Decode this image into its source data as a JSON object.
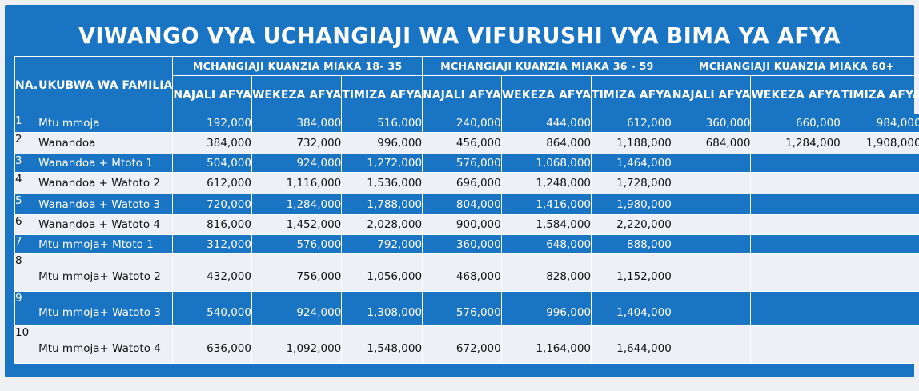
{
  "title": "VIWANGO VYA UCHANGIAJI WA VIFURUSHI VYA BIMA YA AFYA",
  "table": {
    "col_no": "NA.",
    "col_family": "UKUBWA WA FAMILIA",
    "age_groups": [
      "MCHANGIAJI KUANZIA MIAKA 18- 35",
      "MCHANGIAJI KUANZIA MIAKA 36 - 59",
      "MCHANGIAJI KUANZIA MIAKA 60+"
    ],
    "packages": [
      "NAJALI AFYA",
      "WEKEZA AFYA",
      "TIMIZA AFYA"
    ],
    "rows": [
      {
        "no": "1",
        "family": "Mtu mmoja",
        "values": [
          "192,000",
          "384,000",
          "516,000",
          "240,000",
          "444,000",
          "612,000",
          "360,000",
          "660,000",
          "984,000"
        ]
      },
      {
        "no": "2",
        "family": "Wanandoa",
        "values": [
          "384,000",
          "732,000",
          "996,000",
          "456,000",
          "864,000",
          "1,188,000",
          "684,000",
          "1,284,000",
          "1,908,000"
        ]
      },
      {
        "no": "3",
        "family": "Wanandoa + Mtoto 1",
        "values": [
          "504,000",
          "924,000",
          "1,272,000",
          "576,000",
          "1,068,000",
          "1,464,000",
          "",
          "",
          ""
        ]
      },
      {
        "no": "4",
        "family": "Wanandoa + Watoto 2",
        "values": [
          "612,000",
          "1,116,000",
          "1,536,000",
          "696,000",
          "1,248,000",
          "1,728,000",
          "",
          "",
          ""
        ]
      },
      {
        "no": "5",
        "family": "Wanandoa + Watoto 3",
        "values": [
          "720,000",
          "1,284,000",
          "1,788,000",
          "804,000",
          "1,416,000",
          "1,980,000",
          "",
          "",
          ""
        ]
      },
      {
        "no": "6",
        "family": "Wanandoa + Watoto 4",
        "values": [
          "816,000",
          "1,452,000",
          "2,028,000",
          "900,000",
          "1,584,000",
          "2,220,000",
          "",
          "",
          ""
        ]
      },
      {
        "no": "7",
        "family": "Mtu mmoja+ Mtoto 1",
        "values": [
          "312,000",
          "576,000",
          "792,000",
          "360,000",
          "648,000",
          "888,000",
          "",
          "",
          ""
        ]
      },
      {
        "no": "8",
        "family": "Mtu mmoja+ Watoto 2",
        "values": [
          "432,000",
          "756,000",
          "1,056,000",
          "468,000",
          "828,000",
          "1,152,000",
          "",
          "",
          ""
        ]
      },
      {
        "no": "9",
        "family": "Mtu mmoja+ Watoto 3",
        "values": [
          "540,000",
          "924,000",
          "1,308,000",
          "576,000",
          "996,000",
          "1,404,000",
          "",
          "",
          ""
        ]
      },
      {
        "no": "10",
        "family": "Mtu mmoja+ Watoto 4",
        "values": [
          "636,000",
          "1,092,000",
          "1,548,000",
          "672,000",
          "1,164,000",
          "1,644,000",
          "",
          "",
          ""
        ]
      }
    ]
  },
  "colors": {
    "blue": "#1a74c4",
    "light": "#edf0f5",
    "border": "#ffffff"
  }
}
